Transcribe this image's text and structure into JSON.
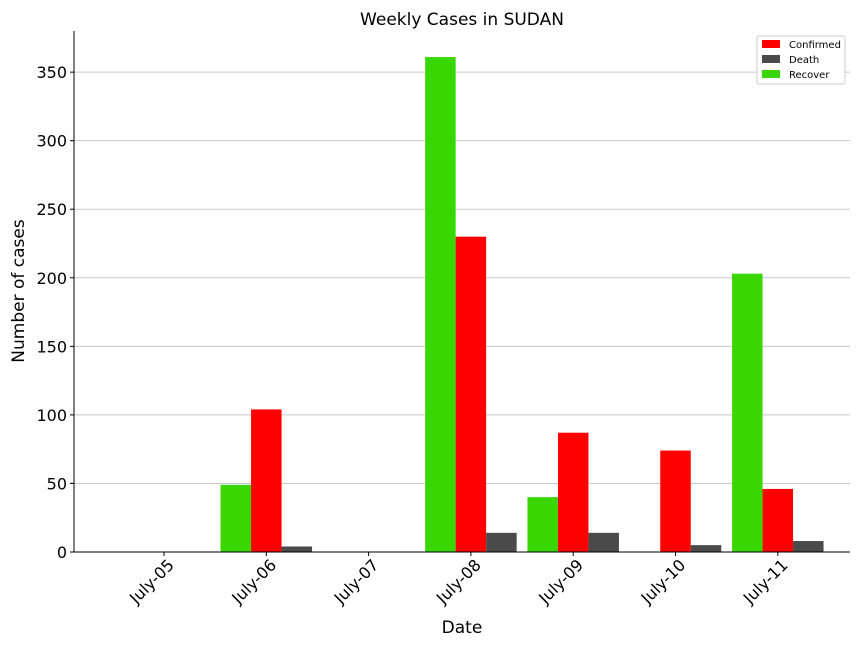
{
  "chart_data": {
    "type": "bar",
    "title": "Weekly Cases in SUDAN",
    "xlabel": "Date",
    "ylabel": "Number of cases",
    "categories": [
      "July-05",
      "July-06",
      "July-07",
      "July-08",
      "July-09",
      "July-10",
      "July-11"
    ],
    "series": [
      {
        "name": "Confirmed",
        "color": "#ff0000",
        "values": [
          0,
          104,
          0,
          230,
          87,
          74,
          46
        ]
      },
      {
        "name": "Death",
        "color": "#4a4a4a",
        "values": [
          0,
          4,
          0,
          14,
          14,
          5,
          8
        ]
      },
      {
        "name": "Recover",
        "color": "#3ad600",
        "values": [
          0,
          49,
          0,
          361,
          40,
          0,
          203
        ]
      }
    ],
    "bar_order": [
      "Recover",
      "Confirmed",
      "Death"
    ],
    "ylim": [
      0,
      380
    ],
    "yticks": [
      0,
      50,
      100,
      150,
      200,
      250,
      300,
      350
    ],
    "grid": "y",
    "legend_position": "top-right"
  }
}
